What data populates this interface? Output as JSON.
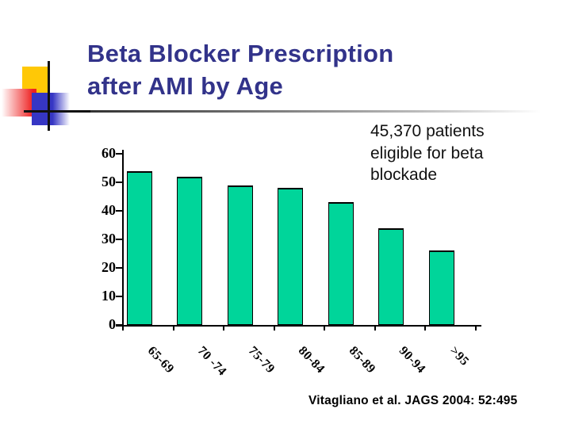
{
  "title": {
    "line1": "Beta Blocker Prescription",
    "line2": "after AMI by Age"
  },
  "annotation": {
    "text": "45,370 patients eligible for beta blockade"
  },
  "citation": {
    "text": "Vitagliano et al. JAGS 2004: 52:495"
  },
  "colors": {
    "title_color": "#32338A",
    "bar_fill": "#00D59A",
    "bar_border": "#000000",
    "decor_yellow": "#FFC806",
    "decor_red": "#EE2222",
    "decor_blue": "#3636C4"
  },
  "chart_data": {
    "type": "bar",
    "title": "",
    "xlabel": "",
    "ylabel": "",
    "categories": [
      "65-69",
      "70 -74",
      "75-79",
      "80-84",
      "85-89",
      "90-94",
      ">95"
    ],
    "values": [
      54,
      52,
      49,
      48,
      43,
      34,
      26
    ],
    "ylim": [
      0,
      60
    ],
    "yticks": [
      0,
      10,
      20,
      30,
      40,
      50,
      60
    ],
    "grid": false,
    "legend": false,
    "bar_color": "#00D59A"
  }
}
